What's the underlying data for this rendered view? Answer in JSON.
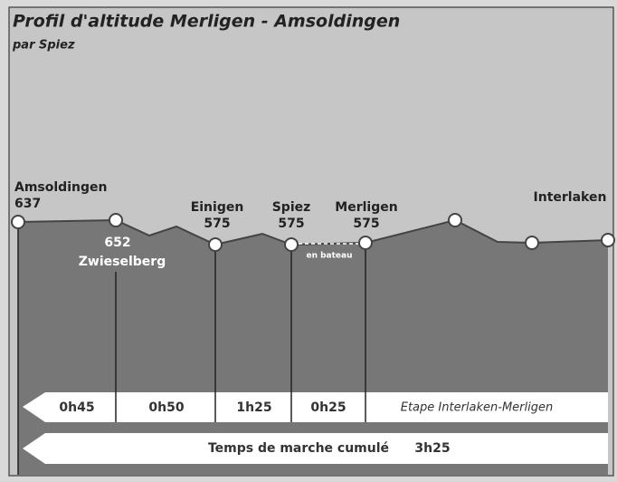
{
  "title": "Profil d'altitude Merligen - Amsoldingen",
  "subtitle": "par Spiez",
  "places": [
    {
      "name": "Amsoldingen",
      "altitude": "637"
    },
    {
      "name": "Zwieselberg",
      "altitude": "652"
    },
    {
      "name": "Einigen",
      "altitude": "575"
    },
    {
      "name": "Spiez",
      "altitude": "575"
    },
    {
      "name": "Merligen",
      "altitude": "575"
    },
    {
      "name": "Interlaken"
    }
  ],
  "boat_label": "en bateau",
  "durations": [
    "0h45",
    "0h50",
    "1h25",
    "0h25",
    "Etape Interlaken-Merligen"
  ],
  "total": {
    "label": "Temps de marche cumulé",
    "value": "3h25"
  }
}
